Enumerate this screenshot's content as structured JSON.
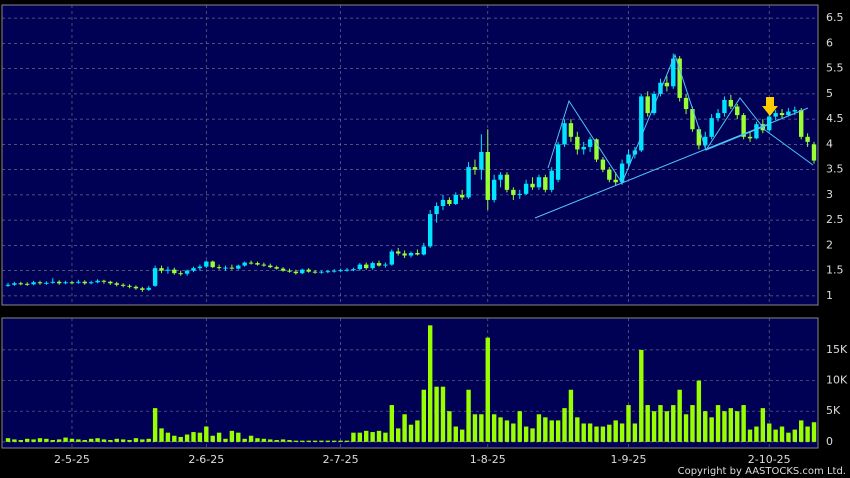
{
  "chart_data": {
    "type": "candlestick",
    "categories": [
      null,
      null,
      null,
      null,
      null,
      null,
      null,
      null,
      null,
      null,
      "2-5-25",
      null,
      null,
      null,
      null,
      null,
      null,
      null,
      null,
      null,
      null,
      null,
      null,
      null,
      null,
      null,
      null,
      null,
      null,
      null,
      null,
      "2-6-25",
      null,
      null,
      null,
      null,
      null,
      null,
      null,
      null,
      null,
      null,
      null,
      null,
      null,
      null,
      null,
      null,
      null,
      null,
      null,
      null,
      "2-7-25",
      null,
      null,
      null,
      null,
      null,
      null,
      null,
      null,
      null,
      null,
      null,
      null,
      null,
      null,
      null,
      null,
      null,
      null,
      null,
      null,
      null,
      null,
      "1-8-25",
      null,
      null,
      null,
      null,
      null,
      null,
      null,
      null,
      null,
      null,
      null,
      null,
      null,
      null,
      null,
      null,
      null,
      null,
      null,
      null,
      null,
      "1-9-25",
      null,
      null,
      null,
      null,
      null,
      null,
      null,
      null,
      null,
      null,
      null,
      null,
      null,
      null,
      null,
      null,
      null,
      null,
      null,
      null,
      null,
      "2-10-25",
      null,
      null,
      null,
      null,
      null,
      null,
      null
    ],
    "open": [
      1.2,
      1.22,
      1.25,
      1.24,
      1.23,
      1.27,
      1.25,
      1.26,
      1.28,
      1.25,
      1.27,
      1.26,
      1.28,
      1.25,
      1.27,
      1.3,
      1.28,
      1.25,
      1.22,
      1.2,
      1.18,
      1.15,
      1.12,
      1.2,
      1.55,
      1.5,
      1.52,
      1.45,
      1.44,
      1.5,
      1.55,
      1.58,
      1.68,
      1.57,
      1.55,
      1.56,
      1.54,
      1.6,
      1.66,
      1.65,
      1.62,
      1.6,
      1.57,
      1.54,
      1.5,
      1.48,
      1.45,
      1.52,
      1.48,
      1.47,
      1.48,
      1.49,
      1.5,
      1.51,
      1.52,
      1.53,
      1.62,
      1.55,
      1.65,
      1.6,
      1.62,
      1.88,
      1.84,
      1.8,
      1.85,
      1.82,
      1.98,
      2.62,
      2.78,
      2.9,
      2.82,
      3.0,
      2.95,
      3.55,
      3.5,
      3.85,
      2.9,
      3.3,
      3.4,
      3.1,
      3.0,
      3.02,
      3.22,
      3.15,
      3.35,
      3.1,
      3.3,
      4.0,
      4.42,
      4.15,
      3.9,
      3.95,
      4.1,
      3.7,
      3.5,
      3.3,
      3.25,
      3.62,
      3.8,
      3.88,
      4.95,
      4.62,
      5.0,
      5.22,
      5.15,
      5.7,
      4.92,
      4.7,
      4.3,
      3.98,
      4.15,
      4.52,
      4.62,
      4.88,
      4.75,
      4.58,
      4.15,
      4.12,
      4.4,
      4.28,
      4.55,
      4.62,
      4.58,
      4.65,
      4.68,
      4.15,
      4.0
    ],
    "high": [
      1.26,
      1.28,
      1.28,
      1.27,
      1.3,
      1.3,
      1.29,
      1.35,
      1.31,
      1.3,
      1.3,
      1.32,
      1.31,
      1.3,
      1.33,
      1.32,
      1.3,
      1.28,
      1.25,
      1.23,
      1.21,
      1.18,
      1.2,
      1.6,
      1.6,
      1.58,
      1.56,
      1.5,
      1.52,
      1.58,
      1.62,
      1.7,
      1.7,
      1.62,
      1.6,
      1.62,
      1.62,
      1.68,
      1.7,
      1.68,
      1.66,
      1.64,
      1.6,
      1.57,
      1.54,
      1.52,
      1.54,
      1.55,
      1.51,
      1.5,
      1.51,
      1.53,
      1.54,
      1.55,
      1.56,
      1.65,
      1.66,
      1.68,
      1.7,
      1.66,
      1.92,
      1.95,
      1.9,
      1.88,
      1.92,
      2.05,
      2.7,
      2.85,
      3.0,
      2.95,
      3.05,
      3.1,
      3.65,
      3.7,
      4.2,
      4.3,
      3.4,
      3.45,
      3.45,
      3.15,
      3.1,
      3.3,
      3.35,
      3.4,
      3.4,
      3.55,
      4.05,
      4.5,
      4.5,
      4.25,
      4.05,
      4.15,
      4.12,
      3.75,
      3.55,
      3.45,
      3.7,
      3.9,
      3.95,
      5.0,
      5.05,
      5.05,
      5.3,
      5.35,
      5.8,
      5.75,
      5.0,
      4.75,
      4.35,
      4.25,
      4.6,
      4.7,
      4.95,
      4.98,
      4.8,
      4.62,
      4.25,
      4.45,
      4.5,
      4.6,
      4.68,
      4.7,
      4.72,
      4.75,
      4.72,
      4.22,
      4.05
    ],
    "low": [
      1.18,
      1.2,
      1.21,
      1.2,
      1.21,
      1.22,
      1.22,
      1.24,
      1.22,
      1.23,
      1.23,
      1.24,
      1.22,
      1.23,
      1.25,
      1.24,
      1.22,
      1.19,
      1.17,
      1.15,
      1.12,
      1.08,
      1.1,
      1.18,
      1.45,
      1.44,
      1.42,
      1.4,
      1.4,
      1.47,
      1.5,
      1.55,
      1.55,
      1.52,
      1.5,
      1.52,
      1.52,
      1.58,
      1.62,
      1.6,
      1.58,
      1.55,
      1.52,
      1.48,
      1.46,
      1.42,
      1.43,
      1.46,
      1.44,
      1.44,
      1.45,
      1.46,
      1.47,
      1.48,
      1.49,
      1.5,
      1.52,
      1.52,
      1.58,
      1.56,
      1.6,
      1.8,
      1.75,
      1.76,
      1.8,
      1.8,
      1.95,
      2.45,
      2.7,
      2.78,
      2.8,
      2.9,
      2.92,
      3.4,
      3.3,
      2.7,
      2.85,
      3.15,
      3.05,
      2.9,
      2.92,
      3.0,
      3.1,
      3.1,
      3.05,
      3.05,
      3.25,
      3.95,
      4.05,
      3.8,
      3.8,
      3.85,
      3.65,
      3.45,
      3.25,
      3.18,
      3.2,
      3.55,
      3.72,
      3.85,
      4.55,
      4.58,
      4.95,
      5.05,
      5.1,
      4.85,
      4.6,
      4.25,
      3.9,
      3.92,
      4.1,
      4.45,
      4.55,
      4.7,
      4.5,
      4.1,
      4.05,
      4.1,
      4.22,
      4.25,
      4.48,
      4.52,
      4.55,
      4.58,
      4.1,
      3.95,
      3.62
    ],
    "close": [
      1.22,
      1.25,
      1.24,
      1.23,
      1.27,
      1.25,
      1.26,
      1.28,
      1.25,
      1.27,
      1.26,
      1.28,
      1.25,
      1.27,
      1.3,
      1.28,
      1.25,
      1.22,
      1.2,
      1.18,
      1.15,
      1.12,
      1.16,
      1.55,
      1.5,
      1.52,
      1.45,
      1.44,
      1.5,
      1.55,
      1.58,
      1.68,
      1.57,
      1.55,
      1.56,
      1.54,
      1.6,
      1.66,
      1.65,
      1.62,
      1.6,
      1.57,
      1.54,
      1.5,
      1.48,
      1.45,
      1.52,
      1.48,
      1.47,
      1.48,
      1.49,
      1.5,
      1.51,
      1.52,
      1.53,
      1.62,
      1.55,
      1.65,
      1.6,
      1.62,
      1.88,
      1.84,
      1.8,
      1.85,
      1.82,
      1.98,
      2.62,
      2.78,
      2.9,
      2.82,
      3.0,
      2.95,
      3.55,
      3.5,
      3.85,
      2.9,
      3.3,
      3.4,
      3.1,
      3.0,
      3.02,
      3.22,
      3.15,
      3.35,
      3.1,
      3.48,
      4.0,
      4.42,
      4.15,
      3.9,
      3.95,
      4.1,
      3.7,
      3.5,
      3.3,
      3.25,
      3.62,
      3.8,
      3.88,
      4.95,
      4.62,
      5.0,
      5.22,
      5.15,
      5.7,
      4.92,
      4.7,
      4.3,
      3.98,
      4.15,
      4.52,
      4.62,
      4.88,
      4.75,
      4.58,
      4.15,
      4.12,
      4.4,
      4.28,
      4.55,
      4.62,
      4.58,
      4.65,
      4.68,
      4.15,
      4.05,
      3.68
    ],
    "volume": [
      600,
      400,
      300,
      500,
      400,
      600,
      500,
      300,
      400,
      700,
      500,
      400,
      300,
      500,
      600,
      400,
      300,
      500,
      400,
      300,
      600,
      400,
      500,
      5500,
      2200,
      1500,
      1000,
      800,
      1200,
      1600,
      1500,
      2500,
      1000,
      1500,
      500,
      1800,
      1500,
      500,
      1000,
      600,
      500,
      400,
      300,
      400,
      300,
      200,
      200,
      200,
      200,
      200,
      200,
      200,
      200,
      200,
      1500,
      1500,
      1800,
      1600,
      1800,
      1500,
      6000,
      2200,
      4500,
      2800,
      3500,
      8500,
      19000,
      9000,
      9000,
      5000,
      2500,
      2000,
      8500,
      4500,
      4500,
      17000,
      4500,
      4000,
      3500,
      3000,
      5000,
      2500,
      2200,
      4500,
      4000,
      3500,
      3500,
      5500,
      8500,
      4000,
      3000,
      3000,
      2500,
      2500,
      2800,
      3500,
      3000,
      6000,
      3000,
      15000,
      6000,
      5000,
      6000,
      5000,
      6000,
      8500,
      4500,
      6000,
      10000,
      5000,
      4000,
      6000,
      5000,
      5500,
      5000,
      6000,
      2000,
      2500,
      5500,
      3000,
      2000,
      2500,
      1500,
      2000,
      3500,
      2500,
      3200
    ],
    "ylim": [
      0.82,
      6.76
    ],
    "yticks": [
      1,
      1.5,
      2,
      2.5,
      3,
      3.5,
      4,
      4.5,
      5,
      5.5,
      6,
      6.5
    ],
    "volume_ylim": [
      -1000,
      20200
    ],
    "volume_yticks": [
      0,
      {
        "value": 5000,
        "label": "5K"
      },
      {
        "value": 10000,
        "label": "10K"
      },
      {
        "value": 15000,
        "label": "15K"
      }
    ],
    "up_color": "#00e5ff",
    "down_color": "#99ff33",
    "volume_color": "#99ff00",
    "grid": true,
    "copyright": "Copyright by AASTOCKS.com Ltd."
  }
}
